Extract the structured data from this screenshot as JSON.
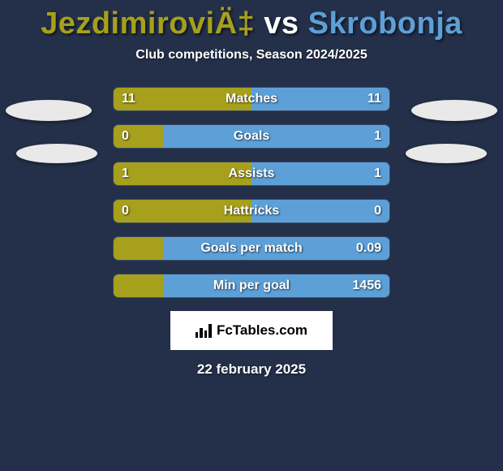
{
  "title": {
    "player_a": "JezdimiroviÄ‡",
    "vs": " vs ",
    "player_b": "Skrobonja",
    "color_a": "#a6a01c",
    "color_b": "#5da0d8"
  },
  "subtitle": "Club competitions, Season 2024/2025",
  "colors": {
    "left_bar": "#a6a01c",
    "right_bar": "#5da0d8",
    "row_bg": "#273352",
    "row_border": "#3a4866",
    "page_bg": "#24304a"
  },
  "stats": [
    {
      "label": "Matches",
      "left_val": "11",
      "right_val": "11",
      "left_pct": 50,
      "right_pct": 50
    },
    {
      "label": "Goals",
      "left_val": "0",
      "right_val": "1",
      "left_pct": 18,
      "right_pct": 82
    },
    {
      "label": "Assists",
      "left_val": "1",
      "right_val": "1",
      "left_pct": 50,
      "right_pct": 50
    },
    {
      "label": "Hattricks",
      "left_val": "0",
      "right_val": "0",
      "left_pct": 50,
      "right_pct": 50
    },
    {
      "label": "Goals per match",
      "left_val": "",
      "right_val": "0.09",
      "left_pct": 18,
      "right_pct": 82
    },
    {
      "label": "Min per goal",
      "left_val": "",
      "right_val": "1456",
      "left_pct": 18,
      "right_pct": 82
    }
  ],
  "badge": "FcTables.com",
  "footer_date": "22 february 2025"
}
